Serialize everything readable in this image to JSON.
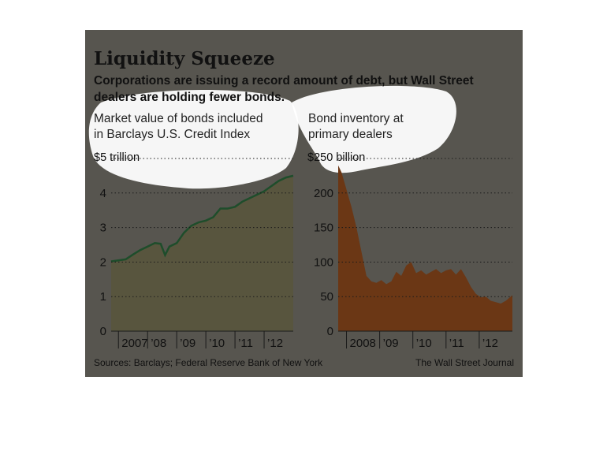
{
  "title": "Liquidity Squeeze",
  "subtitle_line1": "Corporations are issuing a record amount of debt, but Wall Street",
  "subtitle_line2": "dealers are holding fewer bonds.",
  "source": "Sources: Barclays; Federal Reserve Bank of New York",
  "credit": "The Wall Street Journal",
  "colors": {
    "card_bg": "#57554f",
    "left_fill": "#58553e",
    "left_line": "#1e4d2b",
    "right_fill": "#6b3715",
    "highlight": "#ffffff"
  },
  "chart_data": [
    {
      "type": "area",
      "label_line1": "Market value of bonds included",
      "label_line2": "in Barclays U.S. Credit Index",
      "top_tick_label": "$5 trillion",
      "ylim": [
        0,
        5
      ],
      "yticks": [
        0,
        1,
        2,
        3,
        4
      ],
      "xlim": [
        2006.75,
        2013.0
      ],
      "xtick_labels": [
        "2007",
        "’08",
        "’09",
        "’10",
        "’11",
        "’12"
      ],
      "xtick_positions": [
        2007,
        2008,
        2009,
        2010,
        2011,
        2012
      ],
      "x": [
        2006.75,
        2007.0,
        2007.25,
        2007.5,
        2007.75,
        2008.0,
        2008.25,
        2008.45,
        2008.6,
        2008.75,
        2009.0,
        2009.25,
        2009.5,
        2009.75,
        2010.0,
        2010.25,
        2010.5,
        2010.75,
        2011.0,
        2011.25,
        2011.5,
        2011.75,
        2012.0,
        2012.25,
        2012.5,
        2012.75,
        2013.0
      ],
      "y": [
        2.02,
        2.05,
        2.08,
        2.22,
        2.35,
        2.45,
        2.55,
        2.53,
        2.2,
        2.45,
        2.55,
        2.85,
        3.05,
        3.15,
        3.2,
        3.3,
        3.55,
        3.55,
        3.6,
        3.75,
        3.85,
        3.95,
        4.05,
        4.2,
        4.35,
        4.45,
        4.5
      ]
    },
    {
      "type": "area",
      "label_line1": "Bond inventory at",
      "label_line2": "primary dealers",
      "top_tick_label": "$250 billion",
      "ylim": [
        0,
        250
      ],
      "yticks": [
        0,
        50,
        100,
        150,
        200
      ],
      "xlim": [
        2007.75,
        2013.0
      ],
      "xtick_labels": [
        "2008",
        "’09",
        "’10",
        "’11",
        "’12"
      ],
      "xtick_positions": [
        2008,
        2009,
        2010,
        2011,
        2012
      ],
      "x": [
        2007.75,
        2007.85,
        2008.0,
        2008.15,
        2008.3,
        2008.45,
        2008.6,
        2008.75,
        2008.9,
        2009.05,
        2009.2,
        2009.35,
        2009.5,
        2009.65,
        2009.8,
        2009.95,
        2010.1,
        2010.25,
        2010.4,
        2010.55,
        2010.7,
        2010.85,
        2011.0,
        2011.15,
        2011.3,
        2011.45,
        2011.6,
        2011.75,
        2011.9,
        2012.05,
        2012.2,
        2012.35,
        2012.5,
        2012.65,
        2012.8,
        2013.0
      ],
      "y": [
        240,
        230,
        205,
        180,
        150,
        115,
        80,
        72,
        70,
        74,
        68,
        72,
        86,
        80,
        95,
        100,
        84,
        88,
        82,
        86,
        90,
        84,
        88,
        90,
        82,
        90,
        78,
        64,
        54,
        49,
        50,
        44,
        42,
        40,
        44,
        52
      ]
    }
  ]
}
